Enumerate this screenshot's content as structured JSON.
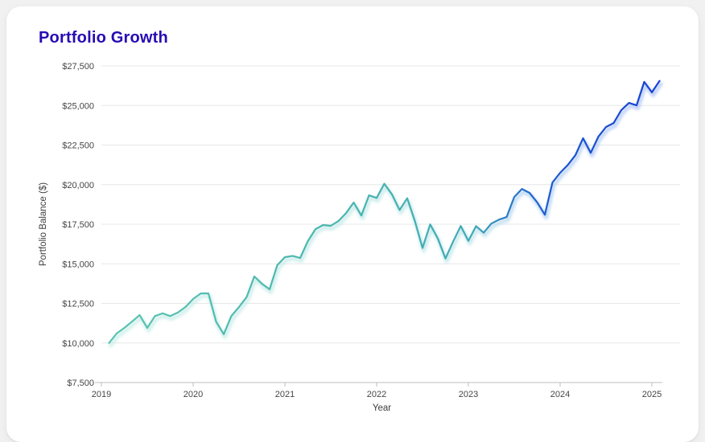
{
  "card": {
    "title": "Portfolio Growth"
  },
  "colors": {
    "background": "#f1f1f2",
    "card": "#ffffff",
    "title": "#270cb4",
    "grid": "#e7e7e7",
    "axis": "#bdbdbd",
    "tick_text": "#454545",
    "axis_title_text": "#3d3d3d",
    "line_start": "#5cc3b3",
    "line_end": "#1540d2"
  },
  "chart_data": {
    "type": "line",
    "title": "Portfolio Growth",
    "xlabel": "Year",
    "ylabel": "Portfolio Balance ($)",
    "legend": "none",
    "grid": "horizontal",
    "ylim": [
      7500,
      27500
    ],
    "y_ticks": [
      7500,
      10000,
      12500,
      15000,
      17500,
      20000,
      22500,
      25000,
      27500
    ],
    "y_tick_labels": [
      "$7,500",
      "$10,000",
      "$12,500",
      "$15,000",
      "$17,500",
      "$20,000",
      "$22,500",
      "$25,000",
      "$27,500"
    ],
    "x_ticks": [
      2019,
      2020,
      2021,
      2022,
      2023,
      2024,
      2025
    ],
    "x_tick_labels": [
      "2019",
      "2020",
      "2021",
      "2022",
      "2023",
      "2024",
      "2025"
    ],
    "frequency": "monthly",
    "start_month": "2019-01",
    "end_month": "2025-01",
    "line_gradient": [
      {
        "offset": 0.0,
        "color": "#5cc3b3"
      },
      {
        "offset": 0.4,
        "color": "#4ab6ac"
      },
      {
        "offset": 0.66,
        "color": "#3faab6"
      },
      {
        "offset": 0.72,
        "color": "#2c7fc6"
      },
      {
        "offset": 0.8,
        "color": "#1d59d0"
      },
      {
        "offset": 1.0,
        "color": "#1540d2"
      }
    ],
    "glow_gradient": [
      {
        "offset": 0.0,
        "color": "#c9efe7"
      },
      {
        "offset": 0.66,
        "color": "#c2e6ea"
      },
      {
        "offset": 0.74,
        "color": "#b5d4f2"
      },
      {
        "offset": 1.0,
        "color": "#b0c4f5"
      }
    ],
    "series": [
      {
        "name": "Portfolio Balance",
        "values": [
          10000,
          10600,
          10950,
          11350,
          11760,
          10950,
          11700,
          11870,
          11700,
          11920,
          12270,
          12780,
          13130,
          13130,
          11350,
          10550,
          11710,
          12270,
          12900,
          14200,
          13740,
          13390,
          14910,
          15420,
          15500,
          15370,
          16430,
          17190,
          17450,
          17400,
          17700,
          18200,
          18870,
          18050,
          19320,
          19160,
          20060,
          19390,
          18400,
          19140,
          17700,
          16000,
          17490,
          16600,
          15330,
          16400,
          17390,
          16450,
          17380,
          16960,
          17540,
          17790,
          17950,
          19220,
          19730,
          19480,
          18880,
          18100,
          20140,
          20750,
          21240,
          21860,
          22930,
          22010,
          23030,
          23640,
          23890,
          24710,
          25160,
          25010,
          26490,
          25830,
          26550
        ]
      }
    ]
  }
}
